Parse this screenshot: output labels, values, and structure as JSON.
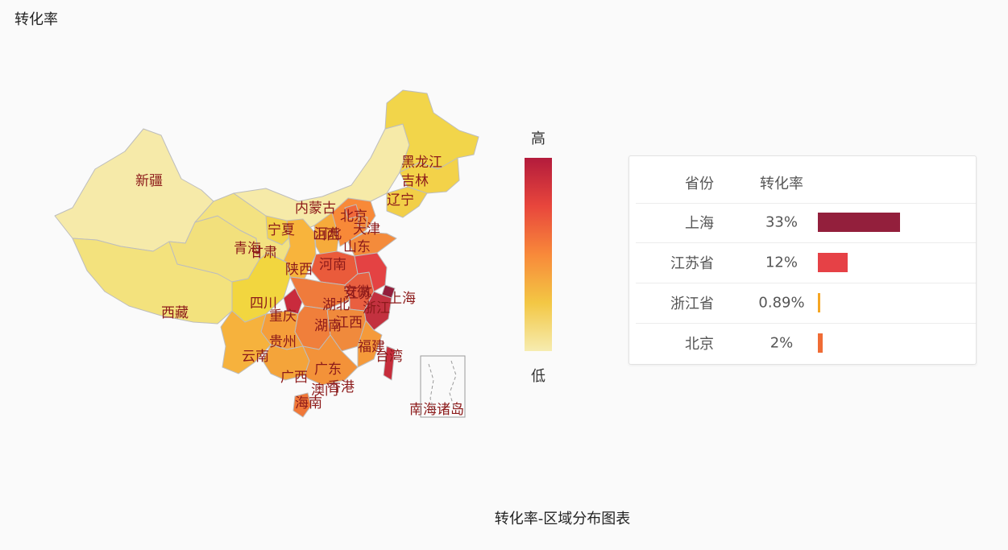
{
  "title": "转化率",
  "legend": {
    "high": "高",
    "low": "低"
  },
  "table": {
    "header": {
      "province": "省份",
      "rate": "转化率"
    },
    "rows": [
      {
        "province": "上海",
        "rate": "33%",
        "color": "#931f3c"
      },
      {
        "province": "江苏省",
        "rate": "12%",
        "color": "#e64146"
      },
      {
        "province": "浙江省",
        "rate": "0.89%",
        "color": "#f5a623"
      },
      {
        "province": "北京",
        "rate": "2%",
        "color": "#f06c35"
      }
    ]
  },
  "chart_data": {
    "type": "heatmap",
    "title": "转化率-区域分布图表",
    "colors": {
      "low": "#f6ecb0",
      "high": "#b31b3c",
      "border": "#bdbdbd"
    },
    "region_labels": [
      "黑龙江",
      "吉林",
      "辽宁",
      "内蒙古",
      "北京",
      "天津",
      "河北",
      "山西",
      "山东",
      "宁夏",
      "甘肃",
      "青海",
      "新疆",
      "西藏",
      "陕西",
      "河南",
      "四川",
      "重庆",
      "湖北",
      "安徽",
      "江苏",
      "上海",
      "浙江",
      "湖南",
      "江西",
      "贵州",
      "云南",
      "福建",
      "台湾",
      "广西",
      "广东",
      "香港",
      "澳门",
      "海南",
      "南海诸岛"
    ],
    "regions": [
      {
        "name": "新疆",
        "color": "#f6eaa9"
      },
      {
        "name": "西藏",
        "color": "#f3e27d"
      },
      {
        "name": "青海",
        "color": "#f2e07c"
      },
      {
        "name": "甘肃",
        "color": "#f3e281"
      },
      {
        "name": "内蒙古",
        "color": "#f6eaa8"
      },
      {
        "name": "黑龙江",
        "color": "#f2d54a"
      },
      {
        "name": "吉林",
        "color": "#f3d249"
      },
      {
        "name": "辽宁",
        "color": "#f2cf48"
      },
      {
        "name": "宁夏",
        "color": "#f3d24b"
      },
      {
        "name": "陕西",
        "color": "#f8b43c"
      },
      {
        "name": "山西",
        "color": "#f6ab3b"
      },
      {
        "name": "河北",
        "color": "#f88938"
      },
      {
        "name": "北京",
        "color": "#f0683a"
      },
      {
        "name": "天津",
        "color": "#f38a3a"
      },
      {
        "name": "山东",
        "color": "#f48b3b"
      },
      {
        "name": "河南",
        "color": "#ea5b3b"
      },
      {
        "name": "四川",
        "color": "#f2d63f"
      },
      {
        "name": "重庆",
        "color": "#c92b3d"
      },
      {
        "name": "湖北",
        "color": "#ef7b3c"
      },
      {
        "name": "湖南",
        "color": "#f07f3b"
      },
      {
        "name": "安徽",
        "color": "#e95f40"
      },
      {
        "name": "江苏",
        "color": "#e44243"
      },
      {
        "name": "上海",
        "color": "#931f3c"
      },
      {
        "name": "浙江",
        "color": "#c3313f"
      },
      {
        "name": "江西",
        "color": "#f08a3c"
      },
      {
        "name": "福建",
        "color": "#f59a3a"
      },
      {
        "name": "台湾",
        "color": "#c62d3b"
      },
      {
        "name": "贵州",
        "color": "#f59e3a"
      },
      {
        "name": "云南",
        "color": "#f6b23d"
      },
      {
        "name": "广西",
        "color": "#f4a43a"
      },
      {
        "name": "广东",
        "color": "#f39239"
      },
      {
        "name": "海南",
        "color": "#f07838"
      }
    ]
  }
}
